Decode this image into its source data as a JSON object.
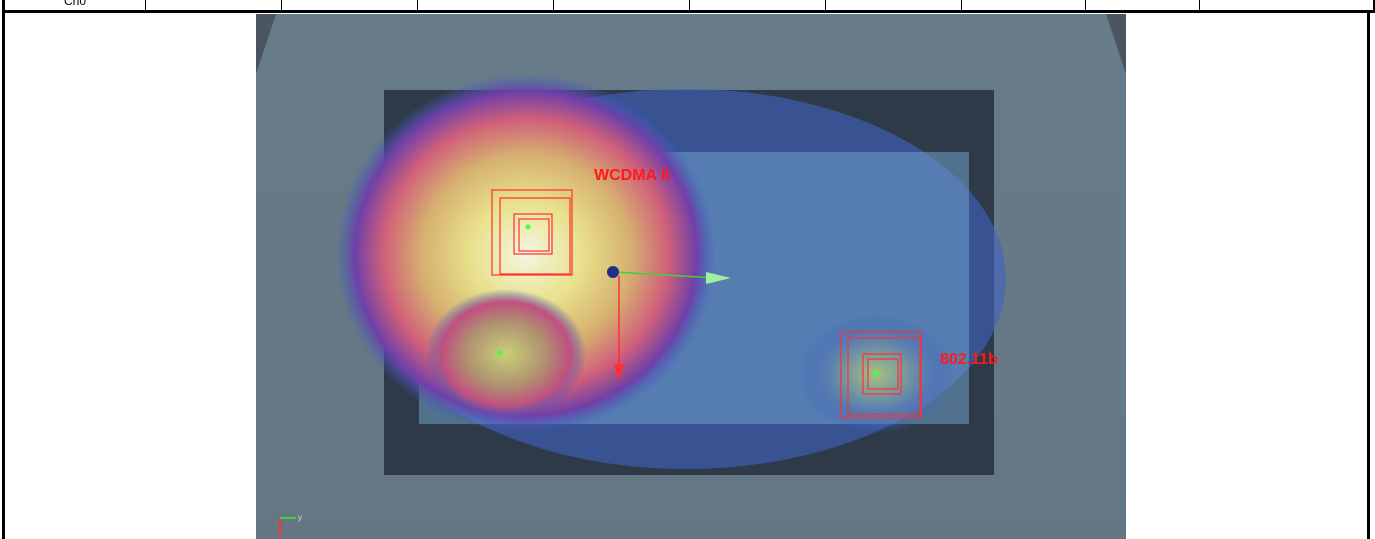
{
  "table": {
    "rows": [
      [
        "Ch0"
      ]
    ]
  },
  "figure": {
    "labels": [
      "WCDMA II",
      "802.11b"
    ],
    "axis_label": "y"
  }
}
